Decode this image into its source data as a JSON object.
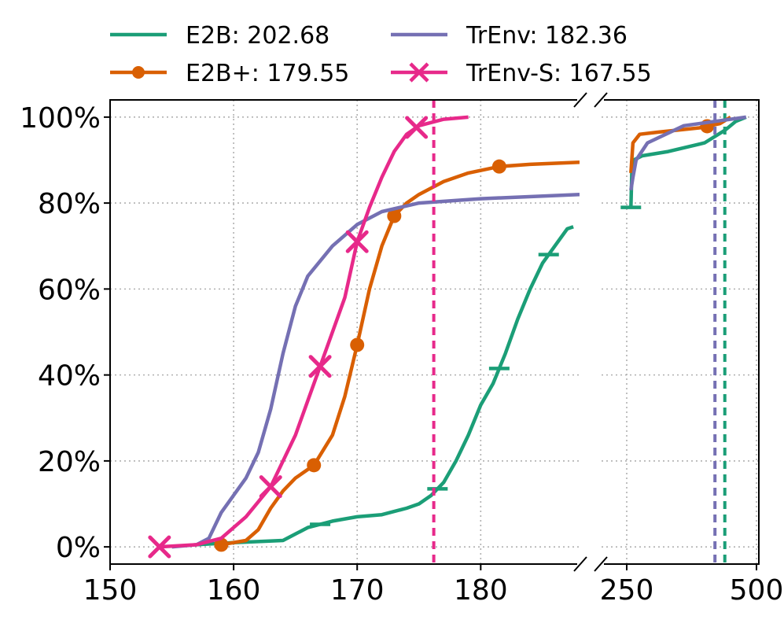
{
  "chart_data": {
    "type": "line",
    "subtype": "cdf",
    "title": "",
    "xlabel": "",
    "ylabel": "",
    "x_axis": {
      "broken": true,
      "left_segment": {
        "range": [
          150,
          188
        ],
        "ticks": [
          "150",
          "160",
          "170",
          "180"
        ]
      },
      "right_segment": {
        "range": [
          220,
          500
        ],
        "ticks": [
          "250",
          "500"
        ]
      }
    },
    "y_axis": {
      "range": [
        -0.04,
        1.04
      ],
      "ticks": [
        "0%",
        "20%",
        "40%",
        "60%",
        "80%",
        "100%"
      ]
    },
    "grid": true,
    "legend": {
      "placement": "top",
      "columns": 2
    },
    "series": [
      {
        "key": "e2b",
        "name": "E2B: 202.68",
        "color": "#1b9e77",
        "marker": "hline",
        "mean_line": 439,
        "points": [
          [
            157,
            0.005
          ],
          [
            160,
            0.01
          ],
          [
            164,
            0.015
          ],
          [
            165,
            0.03
          ],
          [
            166,
            0.045
          ],
          [
            168,
            0.06
          ],
          [
            170,
            0.07
          ],
          [
            172,
            0.075
          ],
          [
            174,
            0.09
          ],
          [
            175,
            0.1
          ],
          [
            176,
            0.12
          ],
          [
            177,
            0.15
          ],
          [
            178,
            0.2
          ],
          [
            179,
            0.26
          ],
          [
            180,
            0.33
          ],
          [
            181,
            0.38
          ],
          [
            182,
            0.45
          ],
          [
            183,
            0.53
          ],
          [
            184,
            0.6
          ],
          [
            185,
            0.66
          ],
          [
            186,
            0.7
          ],
          [
            187,
            0.74
          ],
          [
            187.5,
            0.745
          ],
          [
            258,
            0.79
          ],
          [
            260,
            0.88
          ],
          [
            263,
            0.9
          ],
          [
            280,
            0.91
          ],
          [
            330,
            0.92
          ],
          [
            400,
            0.94
          ],
          [
            440,
            0.97
          ],
          [
            460,
            0.99
          ],
          [
            480,
            1.0
          ]
        ],
        "markers_at": [
          167,
          176.5,
          181.5,
          185.5,
          258
        ]
      },
      {
        "key": "e2b_plus",
        "name": "E2B+: 179.55",
        "color": "#d95f02",
        "marker": "circle",
        "mean_line": null,
        "points": [
          [
            159,
            0.005
          ],
          [
            161,
            0.015
          ],
          [
            162,
            0.04
          ],
          [
            163,
            0.09
          ],
          [
            164,
            0.13
          ],
          [
            165,
            0.16
          ],
          [
            166.5,
            0.19
          ],
          [
            168,
            0.26
          ],
          [
            169,
            0.35
          ],
          [
            170,
            0.47
          ],
          [
            171,
            0.6
          ],
          [
            172,
            0.7
          ],
          [
            173,
            0.77
          ],
          [
            174,
            0.8
          ],
          [
            175,
            0.82
          ],
          [
            177,
            0.85
          ],
          [
            179,
            0.87
          ],
          [
            181.5,
            0.885
          ],
          [
            184,
            0.89
          ],
          [
            188,
            0.895
          ],
          [
            258,
            0.87
          ],
          [
            262,
            0.94
          ],
          [
            275,
            0.96
          ],
          [
            310,
            0.965
          ],
          [
            390,
            0.975
          ],
          [
            430,
            0.985
          ],
          [
            450,
            1.0
          ]
        ],
        "markers_at": [
          159,
          166.5,
          170,
          173,
          181.5,
          405
        ]
      },
      {
        "key": "trenv",
        "name": "TrEnv: 182.36",
        "color": "#7570b3",
        "marker": "none",
        "mean_line": 420,
        "points": [
          [
            155,
            0.0
          ],
          [
            157,
            0.005
          ],
          [
            158,
            0.02
          ],
          [
            159,
            0.08
          ],
          [
            160,
            0.12
          ],
          [
            161,
            0.16
          ],
          [
            162,
            0.22
          ],
          [
            163,
            0.32
          ],
          [
            164,
            0.45
          ],
          [
            165,
            0.56
          ],
          [
            166,
            0.63
          ],
          [
            168,
            0.7
          ],
          [
            170,
            0.75
          ],
          [
            172,
            0.78
          ],
          [
            175,
            0.8
          ],
          [
            180,
            0.81
          ],
          [
            188,
            0.82
          ],
          [
            258,
            0.83
          ],
          [
            262,
            0.86
          ],
          [
            268,
            0.9
          ],
          [
            290,
            0.94
          ],
          [
            360,
            0.98
          ],
          [
            420,
            0.99
          ],
          [
            480,
            1.0
          ]
        ],
        "markers_at": []
      },
      {
        "key": "trenv_s",
        "name": "TrEnv-S: 167.55",
        "color": "#e7298a",
        "marker": "x",
        "mean_line": 176.2,
        "points": [
          [
            154,
            0.0
          ],
          [
            157,
            0.005
          ],
          [
            159,
            0.02
          ],
          [
            161,
            0.07
          ],
          [
            163,
            0.14
          ],
          [
            165,
            0.26
          ],
          [
            167,
            0.42
          ],
          [
            169,
            0.58
          ],
          [
            170,
            0.71
          ],
          [
            171,
            0.79
          ],
          [
            172,
            0.86
          ],
          [
            173,
            0.92
          ],
          [
            174,
            0.96
          ],
          [
            175,
            0.98
          ],
          [
            177,
            0.995
          ],
          [
            179,
            1.0
          ]
        ],
        "markers_at": [
          154,
          163,
          167,
          170,
          174.8
        ]
      }
    ]
  }
}
